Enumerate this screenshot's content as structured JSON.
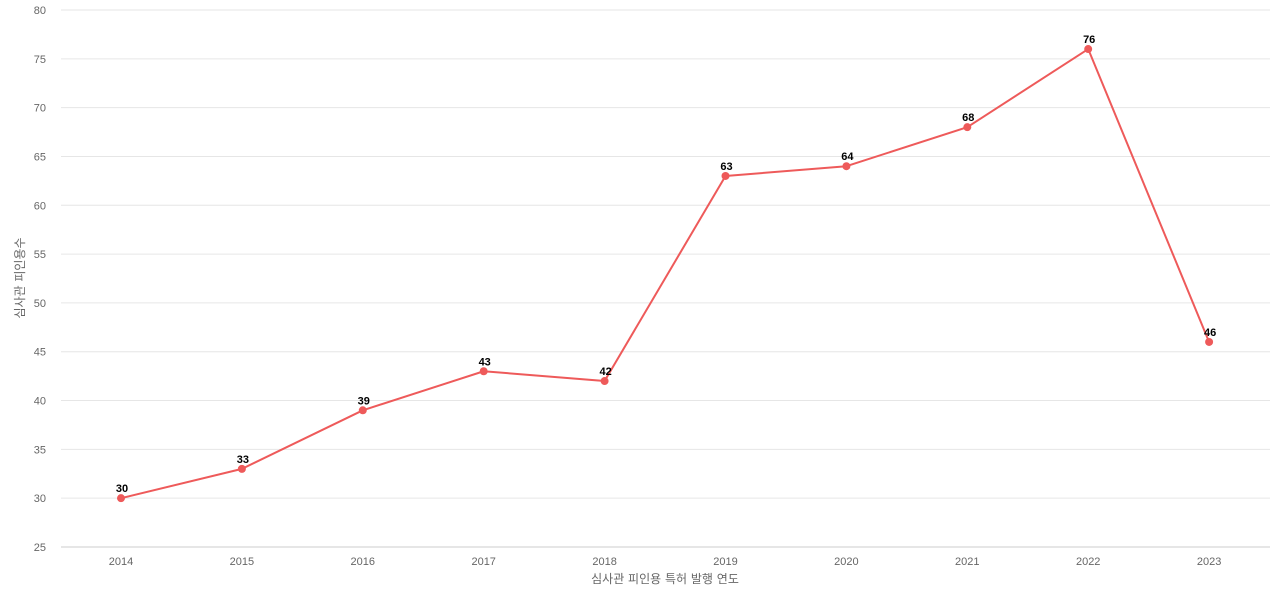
{
  "chart_data": {
    "type": "line",
    "title": "",
    "xlabel": "심사관 피인용 특허 발행 연도",
    "ylabel": "심사관 피인용수",
    "categories": [
      "2014",
      "2015",
      "2016",
      "2017",
      "2018",
      "2019",
      "2020",
      "2021",
      "2022",
      "2023"
    ],
    "series": [
      {
        "values": [
          30,
          33,
          39,
          43,
          42,
          63,
          64,
          68,
          76,
          46
        ],
        "color": "#ee5a5a"
      }
    ],
    "ylim": [
      25,
      80
    ],
    "yticks": [
      "25",
      "30",
      "35",
      "40",
      "45",
      "50",
      "55",
      "60",
      "65",
      "70",
      "75",
      "80"
    ],
    "grid": true,
    "data_labels": true,
    "legend": "none"
  }
}
